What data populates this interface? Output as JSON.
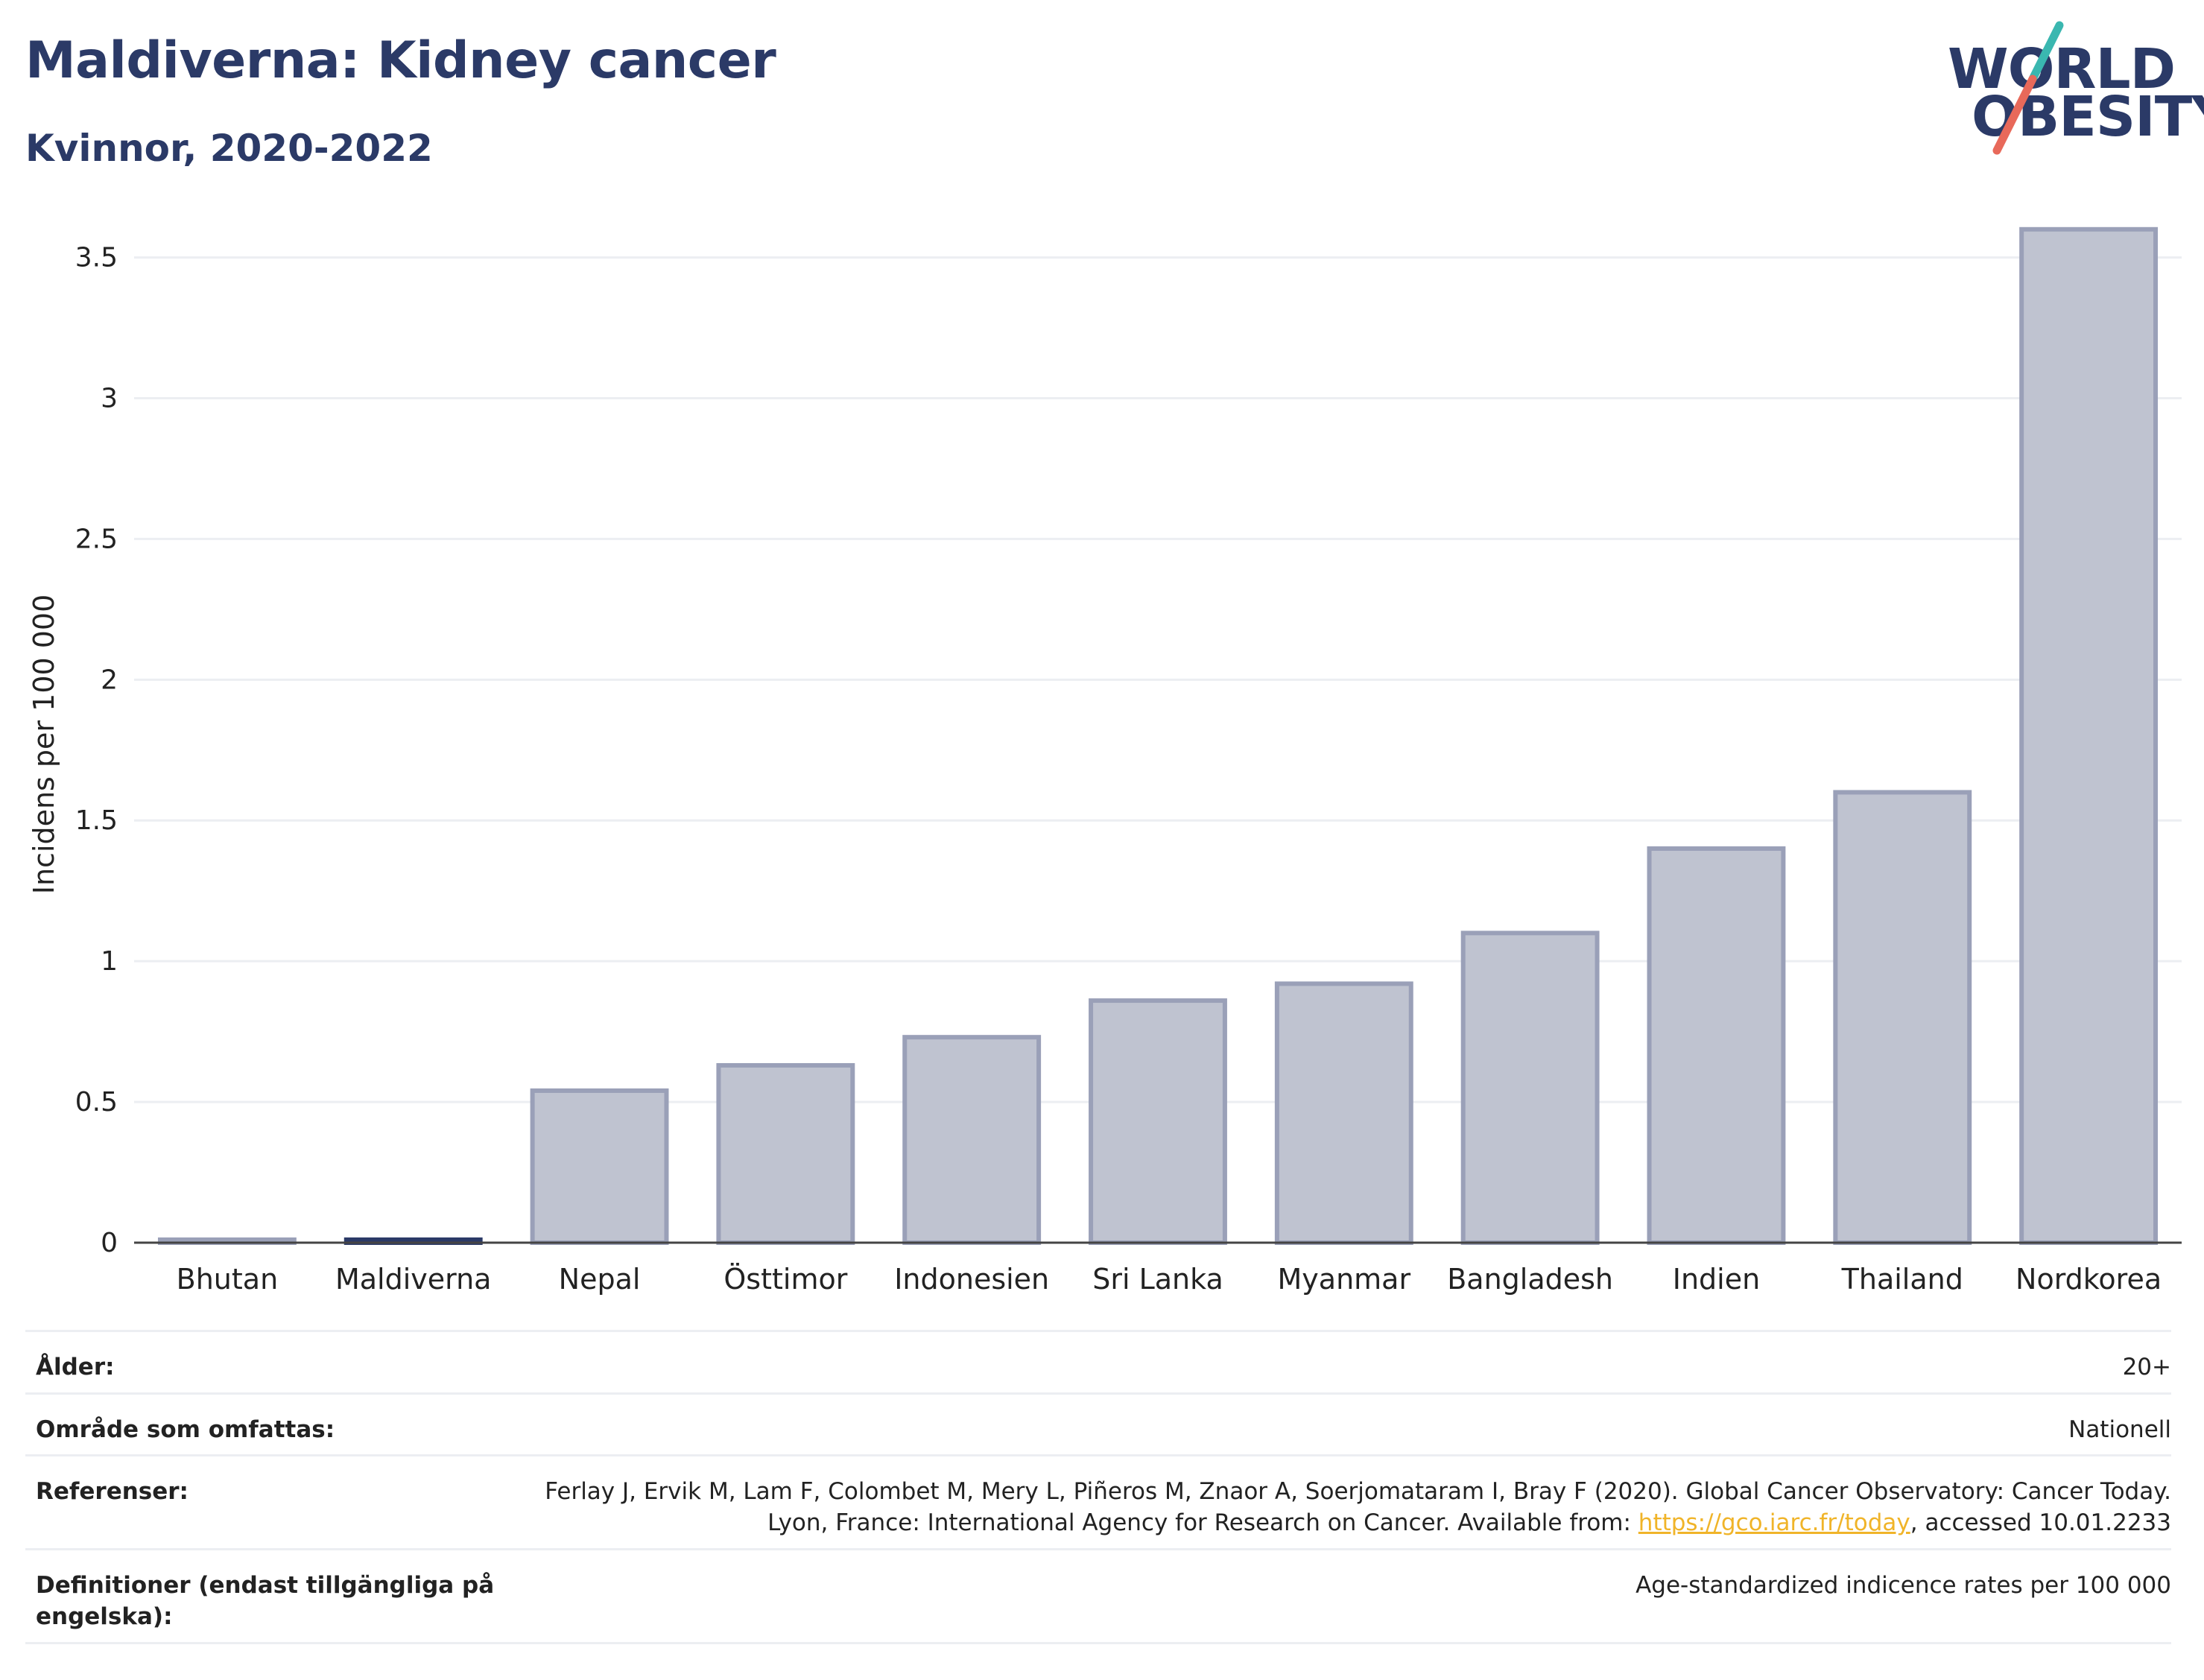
{
  "header": {
    "title": "Maldiverna: Kidney cancer",
    "subtitle": "Kvinnor, 2020-2022"
  },
  "logo": {
    "line1": "WORLD",
    "line2": "OBESITY",
    "colors": {
      "text": "#2b3a67",
      "slash_top": "#3ab7b0",
      "slash_bottom": "#e8695a"
    }
  },
  "chart_data": {
    "type": "bar",
    "ylabel": "Incidens per 100 000",
    "ylim": [
      0,
      3.7
    ],
    "yticks": [
      0,
      0.5,
      1,
      1.5,
      2,
      2.5,
      3,
      3.5
    ],
    "ytick_labels": [
      "0",
      "0.5",
      "1",
      "1.5",
      "2",
      "2.5",
      "3",
      "3.5"
    ],
    "categories": [
      "Bhutan",
      "Maldiverna",
      "Nepal",
      "Östtimor",
      "Indonesien",
      "Sri Lanka",
      "Myanmar",
      "Bangladesh",
      "Indien",
      "Thailand",
      "Nordkorea"
    ],
    "values": [
      0,
      0,
      0.54,
      0.63,
      0.73,
      0.86,
      0.92,
      1.1,
      1.4,
      1.6,
      3.6
    ],
    "highlight": "Maldiverna",
    "grid": true,
    "colors": {
      "bar_fill": "#bfc3d0",
      "bar_stroke": "#9aa0b8",
      "highlight": "#2b3a67",
      "grid": "#eceef2",
      "axis": "#444444"
    }
  },
  "meta": {
    "rows": [
      {
        "key": "Ålder:",
        "value": "20+"
      },
      {
        "key": "Område som omfattas:",
        "value": "Nationell"
      },
      {
        "key": "Referenser:",
        "value_pre": "Ferlay J, Ervik M, Lam F, Colombet M, Mery L, Piñeros M, Znaor A, Soerjomataram I, Bray F (2020). Global Cancer Observatory: Cancer Today. Lyon, France: International Agency for Research on Cancer. Available from: ",
        "link": "https://gco.iarc.fr/today",
        "value_post": ", accessed 10.01.2233"
      },
      {
        "key": "Definitioner (endast tillgängliga på engelska):",
        "value": "Age-standardized indicence rates per 100 000"
      }
    ]
  }
}
